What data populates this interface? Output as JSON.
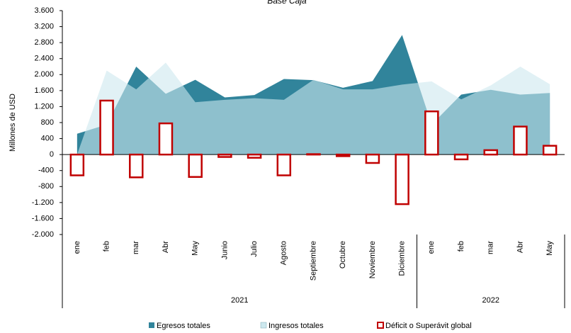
{
  "chart_data": {
    "type": "area-bar",
    "title": "Base Caja",
    "y_label": "Millones de USD",
    "categories": [
      "ene",
      "feb",
      "mar",
      "Abr",
      "May",
      "Junio",
      "Julio",
      "Agosto",
      "Septiembre",
      "Octubre",
      "Noviembre",
      "Diciembre",
      "ene",
      "feb",
      "mar",
      "Abr",
      "May"
    ],
    "groups": [
      {
        "label": "2021",
        "count": 12
      },
      {
        "label": "2022",
        "count": 5
      }
    ],
    "series": [
      {
        "name": "Egresos totales",
        "color": "#31849b",
        "kind": "area",
        "values": [
          520,
          750,
          2200,
          1520,
          1870,
          1430,
          1490,
          1890,
          1860,
          1670,
          1840,
          2990,
          750,
          1500,
          1620,
          1500,
          1540
        ]
      },
      {
        "name": "Ingresos totales",
        "color": "#cde8ee",
        "kind": "area",
        "values": [
          0,
          2100,
          1630,
          2300,
          1310,
          1370,
          1410,
          1370,
          1870,
          1630,
          1630,
          1750,
          1830,
          1380,
          1730,
          2200,
          1760
        ]
      },
      {
        "name": "Déficit o Superávit global",
        "color": "#c00000",
        "kind": "bar",
        "values": [
          -520,
          1350,
          -570,
          780,
          -560,
          -60,
          -80,
          -520,
          10,
          -40,
          -210,
          -1240,
          1080,
          -120,
          110,
          700,
          220
        ]
      }
    ],
    "ylim": [
      -2000,
      3600
    ],
    "yticks": [
      {
        "value": -2000,
        "label": "-2.000"
      },
      {
        "value": -1600,
        "label": "-1.600"
      },
      {
        "value": -1200,
        "label": "-1.200"
      },
      {
        "value": -800,
        "label": "-800"
      },
      {
        "value": -400,
        "label": "-400"
      },
      0,
      {
        "value": 400,
        "label": "400"
      },
      {
        "value": 800,
        "label": "800"
      },
      {
        "value": 1200,
        "label": "1.200"
      },
      {
        "value": 1600,
        "label": "1.600"
      },
      {
        "value": 2000,
        "label": "2.000"
      },
      {
        "value": 2400,
        "label": "2.400"
      },
      {
        "value": 2800,
        "label": "2.800"
      },
      {
        "value": 3200,
        "label": "3.200"
      },
      {
        "value": 3600,
        "label": "3.600"
      }
    ],
    "legend": "bottom"
  }
}
